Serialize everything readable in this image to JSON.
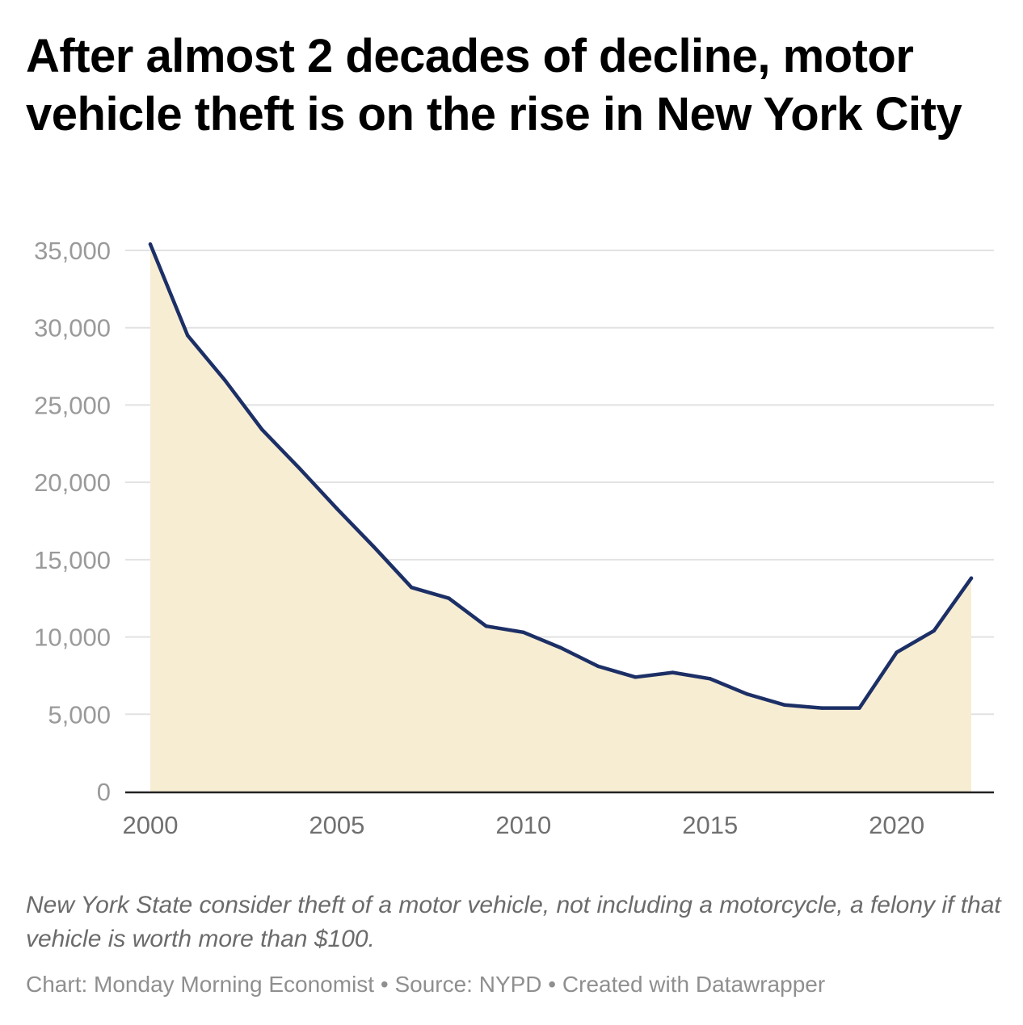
{
  "title": "After almost 2 decades of decline, motor vehicle theft is on the rise in New York City",
  "note": "New York State consider theft of a motor vehicle, not including a motorcycle, a felony if that vehicle is worth more than $100.",
  "footer": {
    "chart_label": "Chart: Monday Morning Economist",
    "separator": " • ",
    "source": "Source: NYPD",
    "credit": "Created with Datawrapper"
  },
  "colors": {
    "line": "#1c2f66",
    "area": "#f7edd2",
    "grid": "#e2e2e2",
    "axis": "#222222"
  },
  "chart_data": {
    "type": "area",
    "title": "After almost 2 decades of decline, motor vehicle theft is on the rise in New York City",
    "xlabel": "",
    "ylabel": "",
    "x": [
      2000,
      2001,
      2002,
      2003,
      2004,
      2005,
      2006,
      2007,
      2008,
      2009,
      2010,
      2011,
      2012,
      2013,
      2014,
      2015,
      2016,
      2017,
      2018,
      2019,
      2020,
      2021,
      2022
    ],
    "series": [
      {
        "values": [
          35400,
          29500,
          26600,
          23400,
          20900,
          18300,
          15800,
          13200,
          12500,
          10700,
          10300,
          9300,
          8100,
          7400,
          7700,
          7300,
          6300,
          5600,
          5400,
          5400,
          9000,
          10400,
          13800
        ]
      }
    ],
    "xlim": [
      2000,
      2022
    ],
    "ylim": [
      0,
      35000
    ],
    "x_ticks": [
      "2000",
      "2005",
      "2010",
      "2015",
      "2020"
    ],
    "x_tick_values": [
      2000,
      2005,
      2010,
      2015,
      2020
    ],
    "y_ticks": [
      "0",
      "5,000",
      "10,000",
      "15,000",
      "20,000",
      "25,000",
      "30,000",
      "35,000"
    ],
    "y_tick_values": [
      0,
      5000,
      10000,
      15000,
      20000,
      25000,
      30000,
      35000
    ],
    "grid": true,
    "legend": "none"
  }
}
